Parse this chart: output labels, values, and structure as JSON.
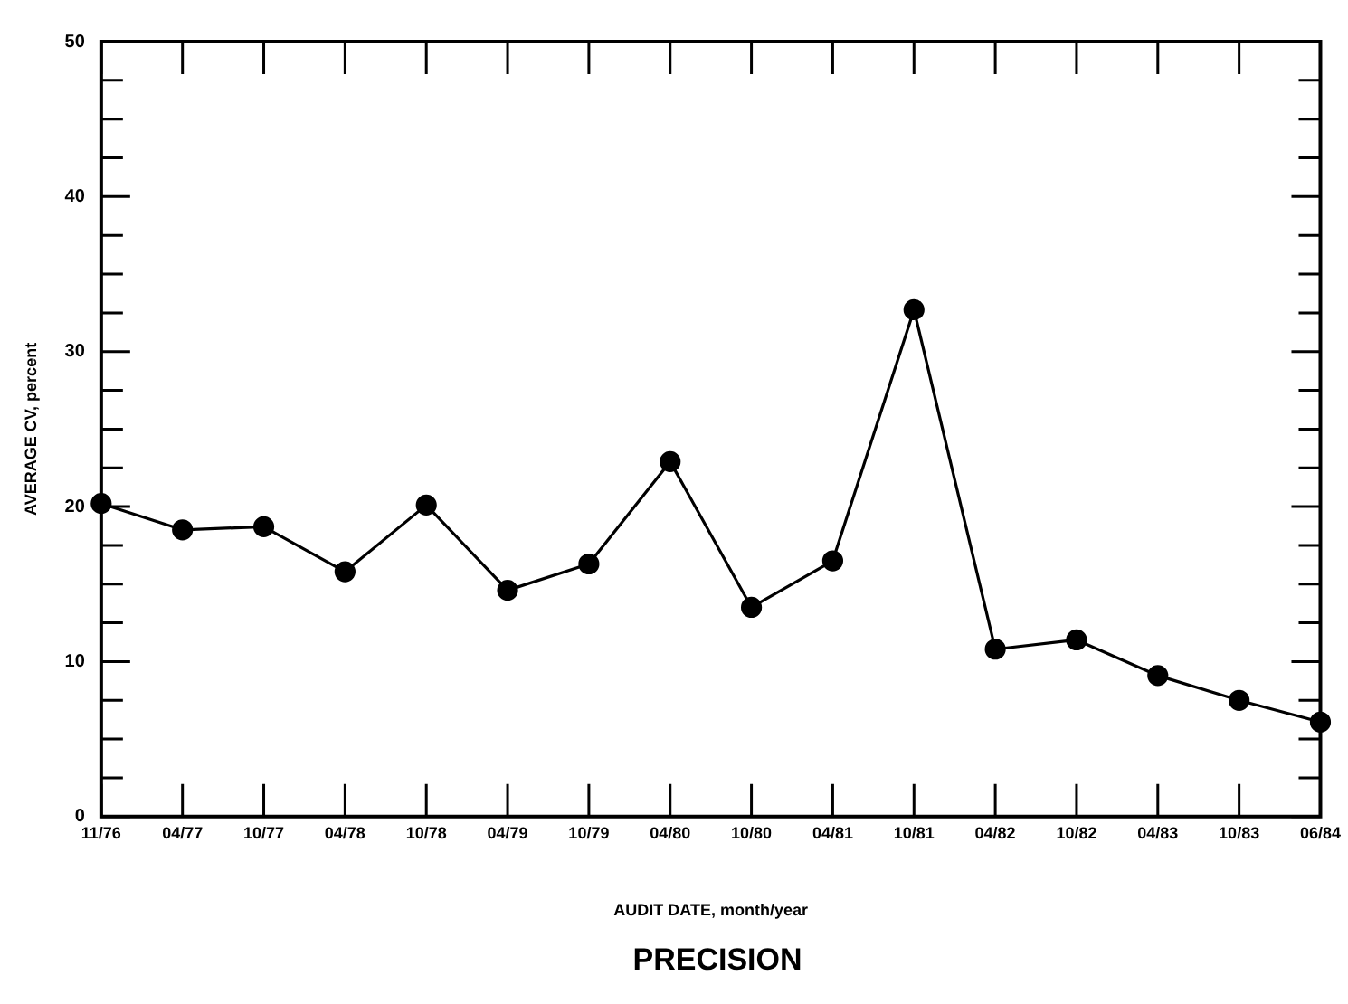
{
  "chart_data": {
    "type": "line",
    "title": "PRECISION",
    "xlabel": "AUDIT DATE, month/year",
    "ylabel": "AVERAGE CV, percent",
    "categories": [
      "11/76",
      "04/77",
      "10/77",
      "04/78",
      "10/78",
      "04/79",
      "10/79",
      "04/80",
      "10/80",
      "04/81",
      "10/81",
      "04/82",
      "10/82",
      "04/83",
      "10/83",
      "06/84"
    ],
    "series": [
      {
        "color": "#000000",
        "values": [
          20.2,
          18.5,
          18.7,
          15.8,
          20.1,
          14.6,
          16.3,
          22.9,
          13.5,
          16.5,
          32.7,
          10.8,
          11.4,
          9.1,
          7.5,
          6.1
        ]
      }
    ],
    "ylim": [
      0,
      50
    ],
    "yticks": [
      0,
      {
        "value": 2.5,
        "label": null
      },
      {
        "value": 5,
        "label": null
      },
      {
        "value": 7.5,
        "label": null
      },
      10,
      {
        "value": 12.5,
        "label": null
      },
      {
        "value": 15,
        "label": null
      },
      {
        "value": 17.5,
        "label": null
      },
      20,
      {
        "value": 22.5,
        "label": null
      },
      {
        "value": 25,
        "label": null
      },
      {
        "value": 27.5,
        "label": null
      },
      30,
      {
        "value": 32.5,
        "label": null
      },
      {
        "value": 35,
        "label": null
      },
      {
        "value": 37.5,
        "label": null
      },
      40,
      {
        "value": 42.5,
        "label": null
      },
      {
        "value": 45,
        "label": null
      },
      {
        "value": 47.5,
        "label": null
      },
      50
    ],
    "grid": false,
    "legend": false,
    "marker": "circle",
    "line_style": "solid"
  }
}
